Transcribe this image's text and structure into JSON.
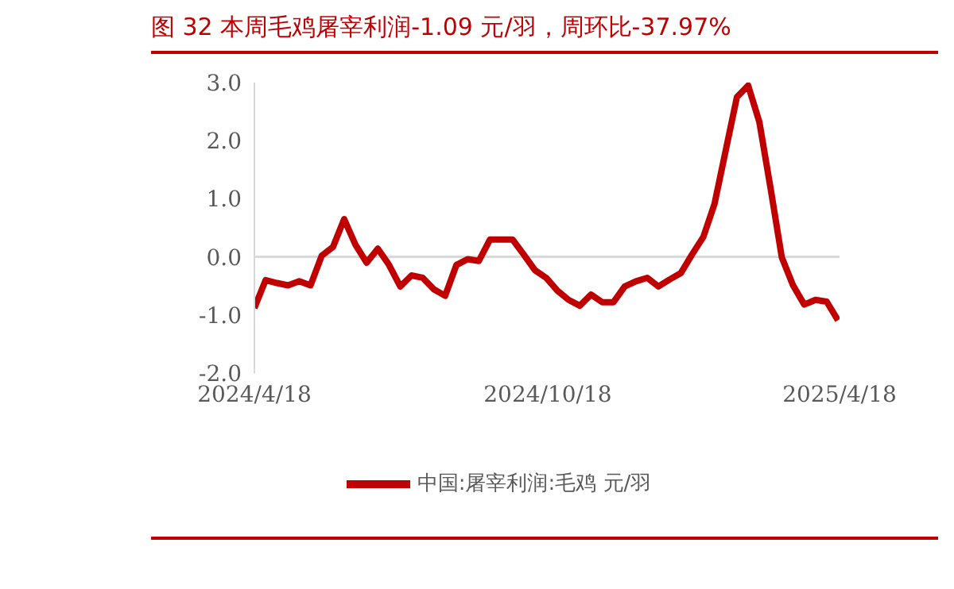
{
  "chart_data": {
    "type": "line",
    "title": "图 32 本周毛鸡屠宰利润-1.09 元/羽，周环比-37.97%",
    "x": [
      "2024-04-18",
      "2024-04-25",
      "2024-05-02",
      "2024-05-09",
      "2024-05-16",
      "2024-05-23",
      "2024-05-30",
      "2024-06-06",
      "2024-06-13",
      "2024-06-20",
      "2024-06-27",
      "2024-07-04",
      "2024-07-11",
      "2024-07-18",
      "2024-07-25",
      "2024-08-01",
      "2024-08-08",
      "2024-08-15",
      "2024-08-22",
      "2024-08-29",
      "2024-09-05",
      "2024-09-12",
      "2024-09-19",
      "2024-09-26",
      "2024-10-03",
      "2024-10-10",
      "2024-10-17",
      "2024-10-24",
      "2024-10-31",
      "2024-11-07",
      "2024-11-14",
      "2024-11-21",
      "2024-11-28",
      "2024-12-05",
      "2024-12-12",
      "2024-12-19",
      "2024-12-26",
      "2025-01-02",
      "2025-01-09",
      "2025-01-16",
      "2025-01-23",
      "2025-01-30",
      "2025-02-06",
      "2025-02-13",
      "2025-02-20",
      "2025-02-27",
      "2025-03-06",
      "2025-03-13",
      "2025-03-20",
      "2025-03-27",
      "2025-04-03",
      "2025-04-10",
      "2025-04-17"
    ],
    "series": [
      {
        "name": "中国:屠宰利润:毛鸡 元/羽",
        "color": "#c00000",
        "values": [
          -0.88,
          -0.4,
          -0.45,
          -0.49,
          -0.42,
          -0.49,
          0.02,
          0.17,
          0.65,
          0.21,
          -0.1,
          0.14,
          -0.14,
          -0.51,
          -0.32,
          -0.36,
          -0.56,
          -0.67,
          -0.14,
          -0.04,
          -0.07,
          0.3,
          0.3,
          0.3,
          0.04,
          -0.23,
          -0.36,
          -0.58,
          -0.74,
          -0.84,
          -0.65,
          -0.78,
          -0.78,
          -0.51,
          -0.42,
          -0.36,
          -0.51,
          -0.39,
          -0.28,
          0.04,
          0.34,
          0.91,
          1.83,
          2.75,
          2.95,
          2.32,
          1.18,
          -0.01,
          -0.49,
          -0.82,
          -0.74,
          -0.77,
          -1.09
        ]
      }
    ],
    "xlim": [
      "2024-04-18",
      "2025-04-18"
    ],
    "xticks": [
      {
        "value": "2024-04-18",
        "label": "2024/4/18"
      },
      {
        "value": "2024-10-18",
        "label": "2024/10/18"
      },
      {
        "value": "2025-04-18",
        "label": "2025/4/18"
      }
    ],
    "ylim": [
      -2,
      3
    ],
    "yticks": [
      {
        "value": -2,
        "label": "-2.0"
      },
      {
        "value": -1,
        "label": "-1.0"
      },
      {
        "value": 0,
        "label": "0.0"
      },
      {
        "value": 1,
        "label": "1.0"
      },
      {
        "value": 2,
        "label": "2.0"
      },
      {
        "value": 3,
        "label": "3.0"
      }
    ],
    "ref_lines": [
      {
        "axis": "y",
        "value": 0,
        "color": "#d9d9d9"
      }
    ],
    "grid": false,
    "legend": "bottom",
    "marker": "none",
    "line_style": "solid"
  }
}
